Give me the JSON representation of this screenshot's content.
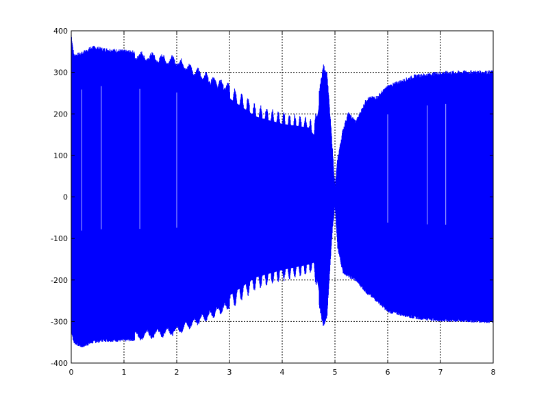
{
  "chart_data": {
    "type": "area",
    "title": "",
    "xlabel": "",
    "ylabel": "",
    "xlim": [
      0,
      8
    ],
    "ylim": [
      -400,
      400
    ],
    "xticks": [
      0,
      1,
      2,
      3,
      4,
      5,
      6,
      7,
      8
    ],
    "xtick_labels": [
      "0",
      "1",
      "2",
      "3",
      "4",
      "5",
      "6",
      "7",
      "8"
    ],
    "yticks": [
      -400,
      -300,
      -200,
      -100,
      0,
      100,
      200,
      300,
      400
    ],
    "ytick_labels": [
      "-400",
      "-300",
      "-200",
      "-100",
      "0",
      "100",
      "200",
      "300",
      "400"
    ],
    "grid": true,
    "fill_color": "#0000ff",
    "series": [
      {
        "style": "dense oscillating signal (envelope)",
        "x": [
          0.0,
          0.05,
          0.2,
          0.4,
          0.6,
          1.0,
          1.5,
          2.0,
          2.5,
          3.0,
          3.5,
          4.0,
          4.5,
          4.6,
          4.7,
          4.78,
          4.85,
          4.95,
          5.0,
          5.05,
          5.15,
          5.25,
          5.4,
          5.6,
          5.8,
          6.0,
          6.5,
          7.0,
          7.5,
          8.0
        ],
        "upper": [
          390,
          340,
          345,
          360,
          355,
          350,
          345,
          335,
          300,
          270,
          220,
          200,
          190,
          170,
          250,
          315,
          295,
          120,
          20,
          90,
          160,
          200,
          180,
          235,
          240,
          265,
          290,
          298,
          300,
          300
        ],
        "lower": [
          -320,
          -350,
          -360,
          -350,
          -345,
          -345,
          -340,
          -330,
          -300,
          -270,
          -220,
          -200,
          -185,
          -180,
          -260,
          -310,
          -285,
          -80,
          -20,
          -120,
          -180,
          -190,
          -200,
          -230,
          -250,
          -275,
          -290,
          -297,
          -298,
          -300
        ]
      }
    ]
  }
}
